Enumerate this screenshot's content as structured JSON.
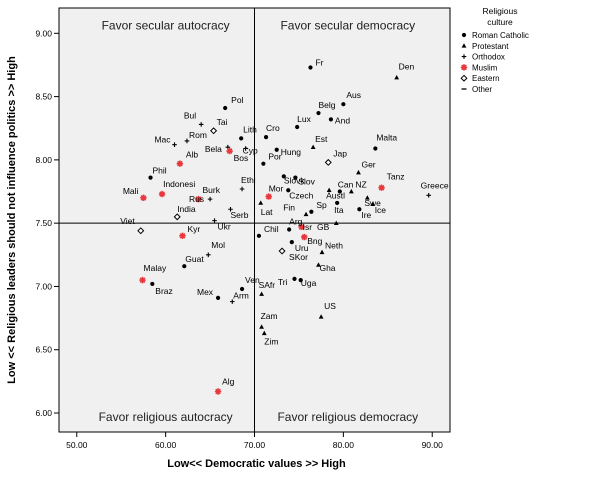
{
  "chart_data": {
    "type": "scatter",
    "title": "",
    "xlabel": "Low<<  Democratic values  >> High",
    "ylabel": "Low << Religious leaders should not influence politics >> High",
    "xlim": [
      48,
      92
    ],
    "ylim": [
      5.85,
      9.2
    ],
    "x_ticks": [
      50,
      60,
      70,
      80,
      90
    ],
    "x_tick_labels": [
      "50.00",
      "60.00",
      "70.00",
      "80.00",
      "90.00"
    ],
    "y_ticks": [
      6,
      6.5,
      7,
      7.5,
      8,
      8.5,
      9
    ],
    "y_tick_labels": [
      "6.00",
      "6.50",
      "7.00",
      "7.50",
      "8.00",
      "8.50",
      "9.00"
    ],
    "reference_lines": {
      "x": 70,
      "y": 7.5
    },
    "grid": false,
    "plot_background": "#f0f0f0",
    "quadrant_labels": [
      {
        "text": "Favor secular autocracy",
        "x": 60,
        "y": 9.06
      },
      {
        "text": "Favor secular democracy",
        "x": 80.5,
        "y": 9.06
      },
      {
        "text": "Favor religious autocracy",
        "x": 60,
        "y": 5.97
      },
      {
        "text": "Favor religious democracy",
        "x": 80.5,
        "y": 5.97
      }
    ],
    "legend": {
      "title": "Religious culture",
      "position": "right-outside-top",
      "entries": [
        {
          "key": "catholic",
          "label": "Roman Catholic"
        },
        {
          "key": "protestant",
          "label": "Protestant"
        },
        {
          "key": "orthodox",
          "label": "Orthodox"
        },
        {
          "key": "muslim",
          "label": "Muslim"
        },
        {
          "key": "eastern",
          "label": "Eastern"
        },
        {
          "key": "other",
          "label": "Other"
        }
      ]
    },
    "marker_colors": {
      "default": "#000000",
      "muslim": "#e8383d"
    },
    "points": [
      {
        "label": "Fr",
        "x": 76.3,
        "y": 8.73,
        "group": "catholic"
      },
      {
        "label": "Den",
        "x": 86.0,
        "y": 8.65,
        "group": "protestant"
      },
      {
        "label": "Pol",
        "x": 66.7,
        "y": 8.41,
        "group": "catholic"
      },
      {
        "label": "Aus",
        "x": 80.0,
        "y": 8.44,
        "group": "catholic"
      },
      {
        "label": "Belg",
        "x": 77.2,
        "y": 8.37,
        "group": "catholic"
      },
      {
        "label": "And",
        "x": 78.6,
        "y": 8.32,
        "group": "catholic"
      },
      {
        "label": "Lux",
        "x": 74.8,
        "y": 8.26,
        "group": "catholic"
      },
      {
        "label": "Bul",
        "x": 64.0,
        "y": 8.28,
        "group": "orthodox"
      },
      {
        "label": "Tai",
        "x": 65.4,
        "y": 8.23,
        "group": "eastern"
      },
      {
        "label": "Mac",
        "x": 61.0,
        "y": 8.12,
        "group": "orthodox"
      },
      {
        "label": "Rom",
        "x": 62.4,
        "y": 8.15,
        "group": "orthodox"
      },
      {
        "label": "Lith",
        "x": 68.5,
        "y": 8.17,
        "group": "catholic"
      },
      {
        "label": "Cro",
        "x": 71.3,
        "y": 8.18,
        "group": "catholic"
      },
      {
        "label": "Cyp",
        "x": 69.0,
        "y": 8.09,
        "group": "orthodox"
      },
      {
        "label": "Bela",
        "x": 67.0,
        "y": 8.1,
        "group": "orthodox"
      },
      {
        "label": "Hung",
        "x": 72.5,
        "y": 8.08,
        "group": "catholic"
      },
      {
        "label": "Est",
        "x": 76.6,
        "y": 8.1,
        "group": "protestant"
      },
      {
        "label": "Malta",
        "x": 83.6,
        "y": 8.09,
        "group": "catholic"
      },
      {
        "label": "Alb",
        "x": 61.6,
        "y": 7.97,
        "group": "muslim"
      },
      {
        "label": "Bos",
        "x": 67.2,
        "y": 8.07,
        "group": "muslim"
      },
      {
        "label": "Por",
        "x": 71.0,
        "y": 7.97,
        "group": "catholic"
      },
      {
        "label": "Jap",
        "x": 78.3,
        "y": 7.98,
        "group": "eastern"
      },
      {
        "label": "Ger",
        "x": 81.7,
        "y": 7.9,
        "group": "protestant"
      },
      {
        "label": "Phil",
        "x": 58.3,
        "y": 7.86,
        "group": "catholic"
      },
      {
        "label": "Slovk",
        "x": 73.3,
        "y": 7.87,
        "group": "catholic"
      },
      {
        "label": "Slov",
        "x": 74.6,
        "y": 7.86,
        "group": "catholic"
      },
      {
        "label": "Tanz",
        "x": 84.3,
        "y": 7.78,
        "group": "muslim"
      },
      {
        "label": "Mali",
        "x": 57.5,
        "y": 7.7,
        "group": "muslim"
      },
      {
        "label": "Indonesi",
        "x": 59.6,
        "y": 7.73,
        "group": "muslim"
      },
      {
        "label": "Ethi",
        "x": 68.6,
        "y": 7.77,
        "group": "orthodox"
      },
      {
        "label": "Czech",
        "x": 73.8,
        "y": 7.76,
        "group": "catholic"
      },
      {
        "label": "Austl",
        "x": 78.4,
        "y": 7.76,
        "group": "protestant"
      },
      {
        "label": "Can",
        "x": 79.6,
        "y": 7.75,
        "group": "catholic"
      },
      {
        "label": "NZ",
        "x": 80.9,
        "y": 7.75,
        "group": "protestant"
      },
      {
        "label": "Greece",
        "x": 89.6,
        "y": 7.72,
        "group": "orthodox"
      },
      {
        "label": "Burk",
        "x": 63.7,
        "y": 7.69,
        "group": "muslim"
      },
      {
        "label": "Mor",
        "x": 71.6,
        "y": 7.71,
        "group": "muslim"
      },
      {
        "label": "Rus",
        "x": 65.0,
        "y": 7.69,
        "group": "orthodox"
      },
      {
        "label": "Lat",
        "x": 70.7,
        "y": 7.66,
        "group": "protestant"
      },
      {
        "label": "Ita",
        "x": 79.3,
        "y": 7.66,
        "group": "catholic"
      },
      {
        "label": "Swe",
        "x": 82.7,
        "y": 7.7,
        "group": "protestant"
      },
      {
        "label": "Ice",
        "x": 83.3,
        "y": 7.65,
        "group": "protestant"
      },
      {
        "label": "India",
        "x": 61.3,
        "y": 7.55,
        "group": "eastern"
      },
      {
        "label": "Serb",
        "x": 67.3,
        "y": 7.61,
        "group": "orthodox"
      },
      {
        "label": "Fin",
        "x": 75.8,
        "y": 7.57,
        "group": "protestant"
      },
      {
        "label": "Sp",
        "x": 76.4,
        "y": 7.59,
        "group": "catholic"
      },
      {
        "label": "Ire",
        "x": 81.8,
        "y": 7.61,
        "group": "catholic"
      },
      {
        "label": "Ukr",
        "x": 65.5,
        "y": 7.52,
        "group": "orthodox"
      },
      {
        "label": "GB",
        "x": 79.2,
        "y": 7.5,
        "group": "protestant"
      },
      {
        "label": "Viet",
        "x": 57.2,
        "y": 7.44,
        "group": "eastern"
      },
      {
        "label": "Kyr",
        "x": 61.9,
        "y": 7.4,
        "group": "muslim"
      },
      {
        "label": "Chil",
        "x": 70.5,
        "y": 7.4,
        "group": "catholic"
      },
      {
        "label": "Arg",
        "x": 73.9,
        "y": 7.45,
        "group": "catholic"
      },
      {
        "label": "Isr",
        "x": 75.3,
        "y": 7.47,
        "group": "muslim"
      },
      {
        "label": "Bng",
        "x": 75.6,
        "y": 7.39,
        "group": "muslim"
      },
      {
        "label": "Uru",
        "x": 74.2,
        "y": 7.35,
        "group": "catholic"
      },
      {
        "label": "Neth",
        "x": 77.6,
        "y": 7.27,
        "group": "protestant"
      },
      {
        "label": "Mol",
        "x": 64.8,
        "y": 7.25,
        "group": "orthodox"
      },
      {
        "label": "SKor",
        "x": 73.1,
        "y": 7.28,
        "group": "eastern"
      },
      {
        "label": "Guat",
        "x": 62.1,
        "y": 7.16,
        "group": "catholic"
      },
      {
        "label": "Gha",
        "x": 77.2,
        "y": 7.17,
        "group": "protestant"
      },
      {
        "label": "Tri",
        "x": 74.5,
        "y": 7.06,
        "group": "catholic"
      },
      {
        "label": "Uga",
        "x": 75.2,
        "y": 7.05,
        "group": "catholic"
      },
      {
        "label": "Malay",
        "x": 57.4,
        "y": 7.05,
        "group": "muslim"
      },
      {
        "label": "Braz",
        "x": 58.5,
        "y": 7.02,
        "group": "catholic"
      },
      {
        "label": "Ven",
        "x": 68.6,
        "y": 6.98,
        "group": "catholic"
      },
      {
        "label": "Mex",
        "x": 65.9,
        "y": 6.91,
        "group": "catholic"
      },
      {
        "label": "SAfr",
        "x": 70.8,
        "y": 6.94,
        "group": "protestant"
      },
      {
        "label": "Arm",
        "x": 67.5,
        "y": 6.88,
        "group": "orthodox"
      },
      {
        "label": "US",
        "x": 77.5,
        "y": 6.76,
        "group": "protestant"
      },
      {
        "label": "Zam",
        "x": 70.8,
        "y": 6.68,
        "group": "protestant"
      },
      {
        "label": "Zim",
        "x": 71.1,
        "y": 6.63,
        "group": "protestant"
      },
      {
        "label": "Alg",
        "x": 65.9,
        "y": 6.17,
        "group": "muslim"
      }
    ]
  }
}
